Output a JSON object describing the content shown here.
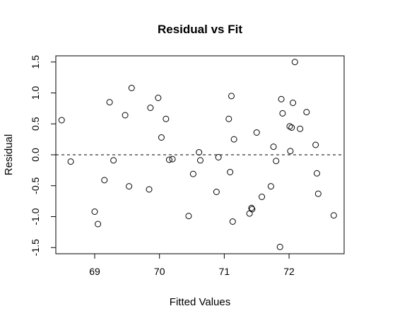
{
  "chart_data": {
    "type": "scatter",
    "title": "Residual vs Fit",
    "xlabel": "Fitted Values",
    "ylabel": "Residual",
    "xlim": [
      68.4,
      72.85
    ],
    "ylim": [
      -1.6,
      1.6
    ],
    "x_ticks": [
      69,
      70,
      71,
      72
    ],
    "x_tick_labels": [
      "69",
      "70",
      "71",
      "72"
    ],
    "y_ticks": [
      -1.5,
      -1.0,
      -0.5,
      0.0,
      0.5,
      1.0,
      1.5
    ],
    "y_tick_labels": [
      "-1.5",
      "-1.0",
      "-0.5",
      "0.0",
      "0.5",
      "1.0",
      "1.5"
    ],
    "reference_line": {
      "y": 0,
      "style": "dashed"
    },
    "grid": false,
    "points": [
      {
        "x": 68.49,
        "y": 0.56
      },
      {
        "x": 68.63,
        "y": -0.11
      },
      {
        "x": 69.0,
        "y": -0.92
      },
      {
        "x": 69.05,
        "y": -1.12
      },
      {
        "x": 69.15,
        "y": -0.41
      },
      {
        "x": 69.23,
        "y": 0.85
      },
      {
        "x": 69.29,
        "y": -0.09
      },
      {
        "x": 69.47,
        "y": 0.64
      },
      {
        "x": 69.53,
        "y": -0.51
      },
      {
        "x": 69.57,
        "y": 1.08
      },
      {
        "x": 69.84,
        "y": -0.56
      },
      {
        "x": 69.86,
        "y": 0.76
      },
      {
        "x": 69.98,
        "y": 0.92
      },
      {
        "x": 70.03,
        "y": 0.28
      },
      {
        "x": 70.1,
        "y": 0.58
      },
      {
        "x": 70.15,
        "y": -0.08
      },
      {
        "x": 70.2,
        "y": -0.07
      },
      {
        "x": 70.45,
        "y": -0.99
      },
      {
        "x": 70.52,
        "y": -0.31
      },
      {
        "x": 70.61,
        "y": 0.04
      },
      {
        "x": 70.63,
        "y": -0.09
      },
      {
        "x": 70.88,
        "y": -0.6
      },
      {
        "x": 70.91,
        "y": -0.04
      },
      {
        "x": 71.07,
        "y": 0.58
      },
      {
        "x": 71.09,
        "y": -0.28
      },
      {
        "x": 71.11,
        "y": 0.95
      },
      {
        "x": 71.13,
        "y": -1.08
      },
      {
        "x": 71.15,
        "y": 0.25
      },
      {
        "x": 71.39,
        "y": -0.95
      },
      {
        "x": 71.42,
        "y": -0.86
      },
      {
        "x": 71.43,
        "y": -0.88
      },
      {
        "x": 71.5,
        "y": 0.36
      },
      {
        "x": 71.58,
        "y": -0.68
      },
      {
        "x": 71.72,
        "y": -0.51
      },
      {
        "x": 71.76,
        "y": 0.13
      },
      {
        "x": 71.8,
        "y": -0.1
      },
      {
        "x": 71.86,
        "y": -1.49
      },
      {
        "x": 71.88,
        "y": 0.9
      },
      {
        "x": 71.9,
        "y": 0.67
      },
      {
        "x": 72.01,
        "y": 0.46
      },
      {
        "x": 72.02,
        "y": 0.06
      },
      {
        "x": 72.04,
        "y": 0.44
      },
      {
        "x": 72.06,
        "y": 0.84
      },
      {
        "x": 72.09,
        "y": 1.5
      },
      {
        "x": 72.17,
        "y": 0.42
      },
      {
        "x": 72.27,
        "y": 0.69
      },
      {
        "x": 72.41,
        "y": 0.16
      },
      {
        "x": 72.43,
        "y": -0.3
      },
      {
        "x": 72.45,
        "y": -0.63
      },
      {
        "x": 72.69,
        "y": -0.98
      }
    ]
  }
}
